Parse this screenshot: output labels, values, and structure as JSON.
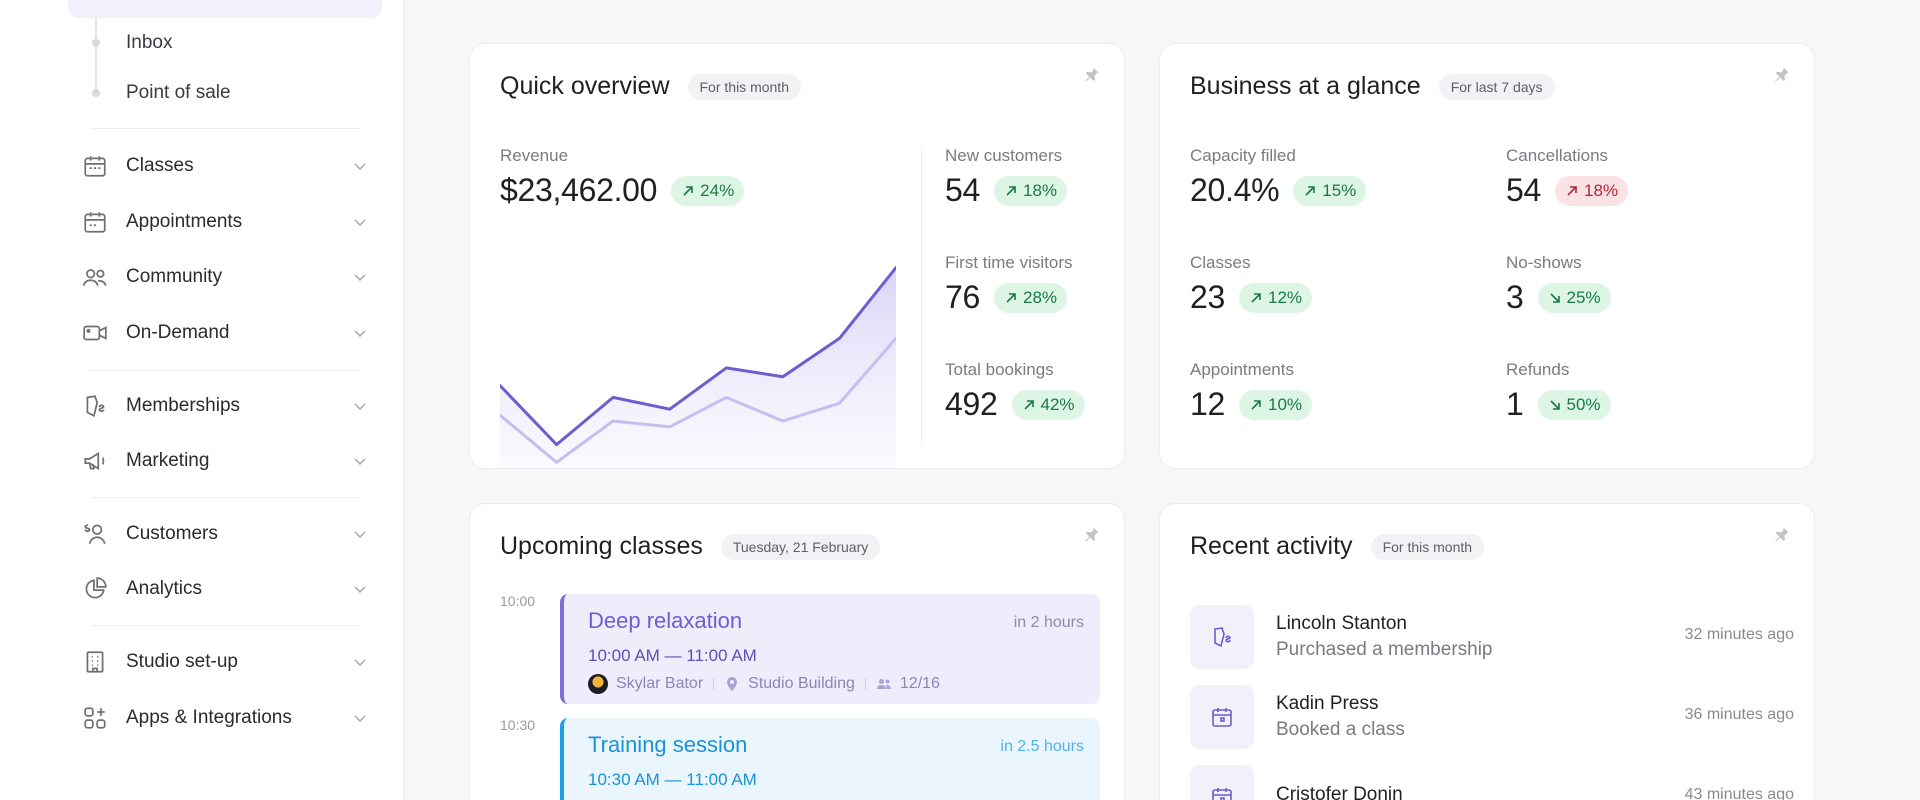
{
  "sidebar": {
    "sub_items": [
      "Inbox",
      "Point of sale"
    ],
    "items": [
      {
        "label": "Classes",
        "icon": "calendar-icon"
      },
      {
        "label": "Appointments",
        "icon": "calendar-check-icon"
      },
      {
        "label": "Community",
        "icon": "users-icon"
      },
      {
        "label": "On-Demand",
        "icon": "video-icon"
      },
      {
        "label": "Memberships",
        "icon": "membership-icon"
      },
      {
        "label": "Marketing",
        "icon": "megaphone-icon"
      },
      {
        "label": "Customers",
        "icon": "customer-dollar-icon"
      },
      {
        "label": "Analytics",
        "icon": "pie-chart-icon"
      },
      {
        "label": "Studio set-up",
        "icon": "building-icon"
      },
      {
        "label": "Apps & Integrations",
        "icon": "apps-icon"
      }
    ]
  },
  "quick_overview": {
    "title": "Quick overview",
    "pill": "For this month",
    "revenue": {
      "label": "Revenue",
      "value": "$23,462.00",
      "change": "24%"
    },
    "stats": [
      {
        "label": "New customers",
        "value": "54",
        "change": "18%"
      },
      {
        "label": "First time visitors",
        "value": "76",
        "change": "28%"
      },
      {
        "label": "Total bookings",
        "value": "492",
        "change": "42%"
      }
    ]
  },
  "chart_data": {
    "type": "area",
    "series": [
      {
        "values": [
          32,
          12,
          28,
          24,
          38,
          35,
          48,
          72
        ],
        "color": "#6b5fcf"
      },
      {
        "values": [
          22,
          6,
          20,
          18,
          28,
          20,
          26,
          48
        ],
        "color": "#c4bff0"
      }
    ],
    "ylim": [
      0,
      80
    ]
  },
  "business": {
    "title": "Business at a glance",
    "pill": "For last 7 days",
    "stats": [
      {
        "label": "Capacity filled",
        "value": "20.4%",
        "change": "15%",
        "direction": "up",
        "tone": "green"
      },
      {
        "label": "Cancellations",
        "value": "54",
        "change": "18%",
        "direction": "up",
        "tone": "red"
      },
      {
        "label": "Classes",
        "value": "23",
        "change": "12%",
        "direction": "up",
        "tone": "green"
      },
      {
        "label": "No-shows",
        "value": "3",
        "change": "25%",
        "direction": "down",
        "tone": "green"
      },
      {
        "label": "Appointments",
        "value": "12",
        "change": "10%",
        "direction": "up",
        "tone": "green"
      },
      {
        "label": "Refunds",
        "value": "1",
        "change": "50%",
        "direction": "down",
        "tone": "green"
      }
    ]
  },
  "upcoming": {
    "title": "Upcoming classes",
    "pill": "Tuesday, 21 February",
    "classes": [
      {
        "time_label": "10:00",
        "title": "Deep relaxation",
        "when": "in 2 hours",
        "time": "10:00 AM — 11:00 AM",
        "instructor": "Skylar Bator",
        "location": "Studio Building",
        "capacity": "12/16"
      },
      {
        "time_label": "10:30",
        "title": "Training session",
        "when": "in 2.5 hours",
        "time": "10:30 AM — 11:00 AM"
      }
    ]
  },
  "activity": {
    "title": "Recent activity",
    "pill": "For this month",
    "items": [
      {
        "name": "Lincoln Stanton",
        "desc": "Purchased a membership",
        "time": "32 minutes ago",
        "icon": "membership-icon"
      },
      {
        "name": "Kadin Press",
        "desc": "Booked a class",
        "time": "36 minutes ago",
        "icon": "calendar-icon"
      },
      {
        "name": "Cristofer Donin",
        "desc": "",
        "time": "43 minutes ago",
        "icon": "calendar-icon"
      }
    ]
  }
}
